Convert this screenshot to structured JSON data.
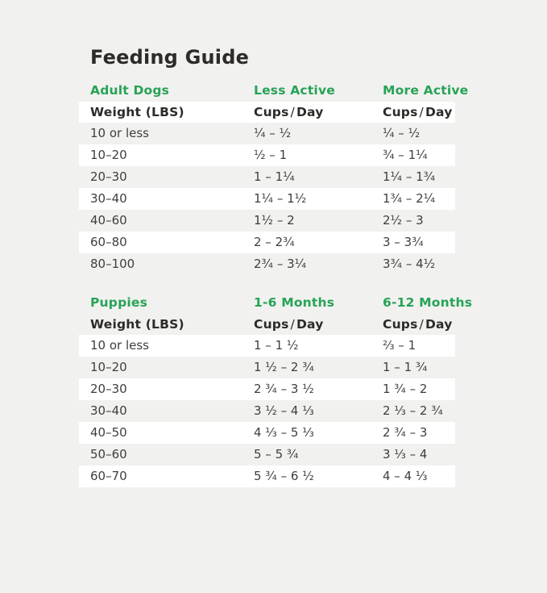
{
  "page": {
    "title": "Feeding Guide",
    "colors": {
      "page_bg": "#f1f1f0",
      "row_white": "#ffffff",
      "accent_green": "#27a356",
      "heading_text": "#2d2b28",
      "body_text": "#403e3b"
    }
  },
  "adult": {
    "section": {
      "group": "Adult Dogs",
      "col2": "Less Active",
      "col3": "More Active"
    },
    "colhead": {
      "weight": "Weight (LBS)",
      "cups": "Cups",
      "slash": "/",
      "day": "Day"
    },
    "rows": [
      {
        "w": "10 or less",
        "less": "¼ – ½",
        "more": "¼ – ½"
      },
      {
        "w": "10–20",
        "less": "½ – 1",
        "more": "¾ – 1¼"
      },
      {
        "w": "20–30",
        "less": "1 – 1¼",
        "more": "1¼ – 1¾"
      },
      {
        "w": "30–40",
        "less": "1¼ – 1½",
        "more": "1¾ – 2¼"
      },
      {
        "w": "40–60",
        "less": "1½ – 2",
        "more": "2½ – 3"
      },
      {
        "w": "60–80",
        "less": "2 – 2¾",
        "more": "3 – 3¾"
      },
      {
        "w": "80–100",
        "less": "2¾ – 3¼",
        "more": "3¾ – 4½"
      }
    ]
  },
  "puppies": {
    "section": {
      "group": "Puppies",
      "col2": "1-6 Months",
      "col3": "6-12 Months"
    },
    "colhead": {
      "weight": "Weight (LBS)",
      "cups": "Cups",
      "slash": "/",
      "day": "Day"
    },
    "rows": [
      {
        "w": "10 or less",
        "less": "1 – 1 ½",
        "more": "⅔ – 1"
      },
      {
        "w": "10–20",
        "less": "1 ½ – 2 ¾",
        "more": "1 – 1 ¾"
      },
      {
        "w": "20–30",
        "less": "2 ¾ – 3 ½",
        "more": "1 ¾ – 2"
      },
      {
        "w": "30–40",
        "less": "3 ½ – 4 ⅓",
        "more": "2 ⅓ – 2 ¾"
      },
      {
        "w": "40–50",
        "less": "4 ⅓ – 5 ⅓",
        "more": "2 ¾ – 3"
      },
      {
        "w": "50–60",
        "less": "5 – 5 ¾",
        "more": "3 ⅓ – 4"
      },
      {
        "w": "60–70",
        "less": "5 ¾ – 6 ½",
        "more": "4 – 4 ⅓"
      }
    ]
  }
}
